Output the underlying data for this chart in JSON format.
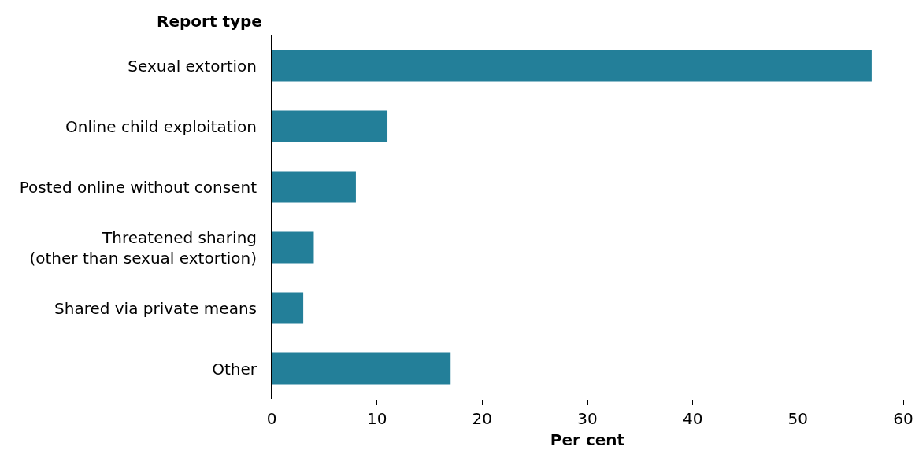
{
  "chart_data": {
    "type": "bar",
    "orientation": "horizontal",
    "ylabel": "Report type",
    "xlabel": "Per cent",
    "categories": [
      "Sexual extortion",
      "Online child exploitation",
      "Posted online without consent",
      "Threatened sharing\n(other than sexual extortion)",
      "Shared via private means",
      "Other"
    ],
    "values": [
      57,
      11,
      8,
      4,
      3,
      17
    ],
    "color": "#237f99",
    "xlim": [
      0,
      60
    ],
    "xticks": [
      0,
      10,
      20,
      30,
      40,
      50,
      60
    ],
    "grid": false
  }
}
